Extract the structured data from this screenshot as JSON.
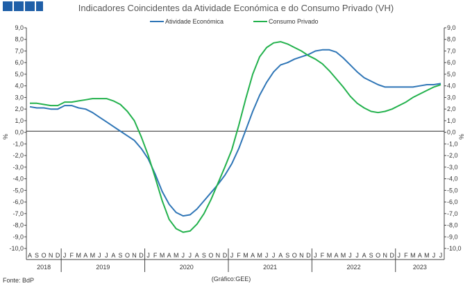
{
  "chart_data": {
    "type": "line",
    "title": "Indicadores Coincidentes da Atividade Económica e do Consumo Privado (VH)",
    "ylabel_left": "%",
    "ylabel_right": "%",
    "ylim": [
      -10,
      9
    ],
    "yticks": [
      "9,0",
      "8,0",
      "7,0",
      "6,0",
      "5,0",
      "4,0",
      "3,0",
      "2,0",
      "1,0",
      "0,0",
      "-1,0",
      "-2,0",
      "-3,0",
      "-4,0",
      "-5,0",
      "-6,0",
      "-7,0",
      "-8,0",
      "-9,0",
      "-10,0"
    ],
    "months": [
      "A",
      "S",
      "O",
      "N",
      "D",
      "J",
      "F",
      "M",
      "A",
      "M",
      "J",
      "J",
      "A",
      "S",
      "O",
      "N",
      "D",
      "J",
      "F",
      "M",
      "A",
      "M",
      "J",
      "J",
      "A",
      "S",
      "O",
      "N",
      "D",
      "J",
      "F",
      "M",
      "A",
      "M",
      "J",
      "J",
      "A",
      "S",
      "O",
      "N",
      "D",
      "J",
      "F",
      "M",
      "A",
      "M",
      "J",
      "J",
      "A",
      "S",
      "O",
      "N",
      "D",
      "J",
      "F",
      "M",
      "A",
      "M",
      "J",
      "J"
    ],
    "years": [
      {
        "label": "2018",
        "start": 0,
        "count": 5
      },
      {
        "label": "2019",
        "start": 5,
        "count": 12
      },
      {
        "label": "2020",
        "start": 17,
        "count": 12
      },
      {
        "label": "2021",
        "start": 29,
        "count": 12
      },
      {
        "label": "2022",
        "start": 41,
        "count": 12
      },
      {
        "label": "2023",
        "start": 53,
        "count": 7
      }
    ],
    "series": [
      {
        "name": "Atividade Económica",
        "color": "#2e75b6",
        "values": [
          2.2,
          2.1,
          2.1,
          2.0,
          2.0,
          2.3,
          2.3,
          2.1,
          2.0,
          1.7,
          1.3,
          0.9,
          0.5,
          0.1,
          -0.3,
          -0.7,
          -1.4,
          -2.3,
          -3.6,
          -5.1,
          -6.2,
          -6.9,
          -7.2,
          -7.1,
          -6.6,
          -5.9,
          -5.2,
          -4.5,
          -3.7,
          -2.7,
          -1.4,
          0.2,
          1.8,
          3.2,
          4.3,
          5.2,
          5.8,
          6.0,
          6.3,
          6.5,
          6.7,
          7.0,
          7.1,
          7.1,
          6.9,
          6.4,
          5.8,
          5.2,
          4.7,
          4.4,
          4.1,
          3.9,
          3.9,
          3.9,
          3.9,
          3.9,
          4.0,
          4.1,
          4.1,
          4.2
        ]
      },
      {
        "name": "Consumo Privado",
        "color": "#22b14c",
        "values": [
          2.5,
          2.5,
          2.4,
          2.3,
          2.3,
          2.6,
          2.6,
          2.7,
          2.8,
          2.9,
          2.9,
          2.9,
          2.7,
          2.4,
          1.8,
          1.0,
          -0.4,
          -2.0,
          -3.9,
          -5.9,
          -7.5,
          -8.3,
          -8.6,
          -8.5,
          -7.9,
          -7.0,
          -5.8,
          -4.4,
          -3.0,
          -1.5,
          0.6,
          2.9,
          5.0,
          6.5,
          7.3,
          7.7,
          7.8,
          7.6,
          7.3,
          7.0,
          6.6,
          6.3,
          5.9,
          5.3,
          4.6,
          3.9,
          3.1,
          2.5,
          2.1,
          1.8,
          1.7,
          1.8,
          2.0,
          2.3,
          2.6,
          3.0,
          3.3,
          3.6,
          3.9,
          4.1
        ]
      }
    ],
    "grid": false,
    "legend_position": "top-center"
  },
  "footer": {
    "source": "Fonte: BdP",
    "credit": "(Gráfico:GEE)"
  },
  "logo": {
    "color": "#1f5fa8"
  }
}
